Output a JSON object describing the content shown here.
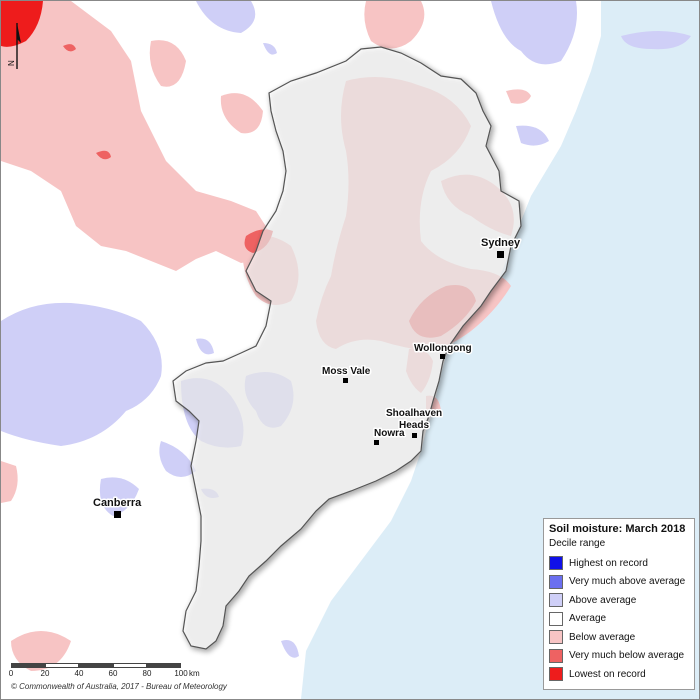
{
  "legend": {
    "title": "Soil moisture: March 2018",
    "subtitle": "Decile range",
    "items": [
      {
        "label": "Highest on record",
        "color": "#1010e8"
      },
      {
        "label": "Very much above average",
        "color": "#6b6ff0"
      },
      {
        "label": "Above average",
        "color": "#cfcff7"
      },
      {
        "label": "Average",
        "color": "#ffffff"
      },
      {
        "label": "Below average",
        "color": "#f7c4c4"
      },
      {
        "label": "Very much below average",
        "color": "#ee6262"
      },
      {
        "label": "Lowest on record",
        "color": "#ee1c1c"
      }
    ]
  },
  "places": [
    {
      "name": "Sydney"
    },
    {
      "name": "Wollongong"
    },
    {
      "name": "Moss Vale"
    },
    {
      "name": "Shoalhaven"
    },
    {
      "name": "Heads"
    },
    {
      "name": "Nowra"
    },
    {
      "name": "Canberra"
    }
  ],
  "scale_bar": {
    "ticks": [
      "0",
      "20",
      "40",
      "60",
      "80",
      "100"
    ],
    "unit": "km"
  },
  "copyright": "© Commonwealth of Australia, 2017 - Bureau of Meteorology",
  "north_label": "N",
  "colors": {
    "ocean": "#dcedf7",
    "below_average": "#f7c4c4",
    "very_much_below": "#ee6262",
    "lowest_on_record": "#ee1c1c",
    "above_average": "#cfcff7"
  }
}
